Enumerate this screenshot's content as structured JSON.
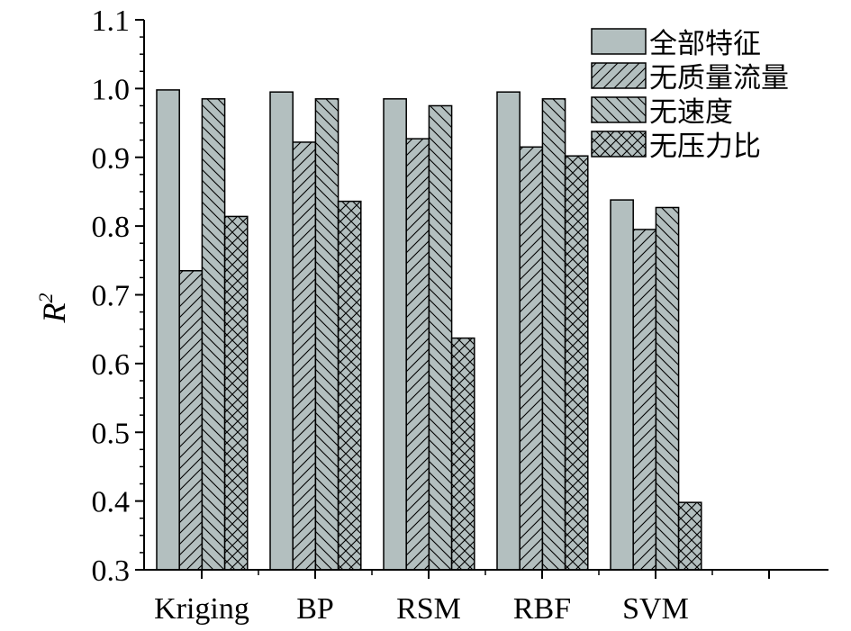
{
  "chart_data": {
    "type": "bar",
    "title": "",
    "xlabel": "",
    "ylabel": "R",
    "ylabel_superscript": "2",
    "ylim": [
      0.3,
      1.1
    ],
    "yticks": [
      0.3,
      0.4,
      0.5,
      0.6,
      0.7,
      0.8,
      0.9,
      1.0,
      1.1
    ],
    "ytick_labels": [
      "0.3",
      "0.4",
      "0.5",
      "0.6",
      "0.7",
      "0.8",
      "0.9",
      "1.0",
      "1.1"
    ],
    "categories": [
      "Kriging",
      "BP",
      "RSM",
      "RBF",
      "SVM"
    ],
    "series": [
      {
        "name": "全部特征",
        "pattern": "solid",
        "values": [
          0.998,
          0.995,
          0.985,
          0.995,
          0.838
        ]
      },
      {
        "name": "无质量流量",
        "pattern": "diag-up",
        "values": [
          0.735,
          0.922,
          0.927,
          0.915,
          0.795
        ]
      },
      {
        "name": "无速度",
        "pattern": "diag-down",
        "values": [
          0.985,
          0.985,
          0.975,
          0.985,
          0.827
        ]
      },
      {
        "name": "无压力比",
        "pattern": "cross",
        "values": [
          0.814,
          0.836,
          0.637,
          0.902,
          0.398
        ]
      }
    ],
    "legend_position": "top-right",
    "grid": false,
    "colors": {
      "bar_fill": "#b3bfbf",
      "stroke": "#000000"
    }
  }
}
